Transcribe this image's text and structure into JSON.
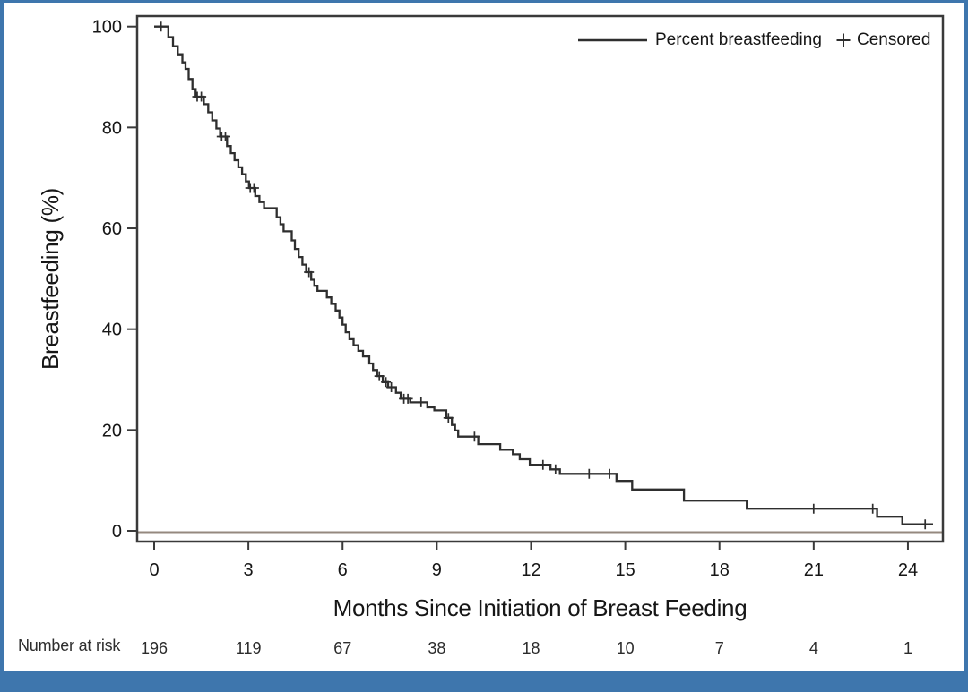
{
  "colors": {
    "accent_blue": "#3e76ad",
    "curve": "#2e2e2e",
    "frame": "#3a3a3a",
    "zero_reference_line": "#95897f",
    "text": "#161616"
  },
  "chart_data": {
    "type": "line",
    "subtype": "kaplan-meier-step-curve",
    "title": "",
    "xlabel": "Months Since Initiation of Breast Feeding",
    "ylabel": "Breastfeeding (%)",
    "x_ticks": [
      0,
      3,
      6,
      9,
      12,
      15,
      18,
      21,
      24
    ],
    "y_ticks": [
      0,
      20,
      40,
      60,
      80,
      100
    ],
    "xlim": [
      -0.55,
      25.1
    ],
    "ylim": [
      -2,
      104
    ],
    "grid": false,
    "zero_reference_line": true,
    "legend": {
      "position": "top-right-inside",
      "entries": [
        {
          "type": "line",
          "label": "Percent breastfeeding"
        },
        {
          "type": "marker",
          "symbol": "+",
          "label": "Censored"
        }
      ]
    },
    "series": [
      {
        "name": "Percent breastfeeding",
        "step": "post",
        "end_time": 24.8,
        "points": [
          [
            0,
            100
          ],
          [
            0.45,
            97.9
          ],
          [
            0.6,
            96.1
          ],
          [
            0.75,
            94.5
          ],
          [
            0.9,
            92.9
          ],
          [
            1.0,
            91.6
          ],
          [
            1.1,
            89.6
          ],
          [
            1.22,
            87.6
          ],
          [
            1.32,
            86.1
          ],
          [
            1.58,
            84.6
          ],
          [
            1.72,
            83.0
          ],
          [
            1.85,
            81.4
          ],
          [
            1.98,
            79.8
          ],
          [
            2.1,
            78.2
          ],
          [
            2.32,
            76.3
          ],
          [
            2.44,
            74.9
          ],
          [
            2.56,
            73.5
          ],
          [
            2.68,
            72.1
          ],
          [
            2.8,
            70.7
          ],
          [
            2.92,
            69.3
          ],
          [
            3.02,
            68.0
          ],
          [
            3.22,
            66.4
          ],
          [
            3.35,
            65.2
          ],
          [
            3.5,
            64.0
          ],
          [
            3.9,
            62.2
          ],
          [
            4.02,
            60.8
          ],
          [
            4.12,
            59.4
          ],
          [
            4.38,
            57.6
          ],
          [
            4.48,
            55.9
          ],
          [
            4.6,
            54.3
          ],
          [
            4.72,
            52.8
          ],
          [
            4.84,
            51.3
          ],
          [
            5.0,
            49.8
          ],
          [
            5.1,
            48.6
          ],
          [
            5.2,
            47.6
          ],
          [
            5.5,
            46.3
          ],
          [
            5.64,
            45.0
          ],
          [
            5.78,
            43.7
          ],
          [
            5.9,
            42.3
          ],
          [
            6.0,
            40.9
          ],
          [
            6.1,
            39.4
          ],
          [
            6.22,
            38.0
          ],
          [
            6.35,
            36.8
          ],
          [
            6.5,
            35.7
          ],
          [
            6.65,
            34.6
          ],
          [
            6.85,
            33.2
          ],
          [
            6.97,
            31.9
          ],
          [
            7.1,
            30.7
          ],
          [
            7.28,
            29.5
          ],
          [
            7.45,
            28.5
          ],
          [
            7.7,
            27.4
          ],
          [
            7.85,
            26.2
          ],
          [
            8.15,
            25.5
          ],
          [
            8.7,
            24.5
          ],
          [
            8.92,
            23.9
          ],
          [
            9.3,
            22.4
          ],
          [
            9.48,
            21.0
          ],
          [
            9.58,
            19.9
          ],
          [
            9.68,
            18.7
          ],
          [
            10.32,
            17.2
          ],
          [
            11.02,
            16.1
          ],
          [
            11.42,
            15.2
          ],
          [
            11.64,
            14.2
          ],
          [
            11.96,
            13.1
          ],
          [
            12.62,
            12.2
          ],
          [
            12.92,
            11.3
          ],
          [
            14.72,
            9.9
          ],
          [
            15.22,
            8.2
          ],
          [
            16.87,
            6.0
          ],
          [
            18.87,
            4.4
          ],
          [
            23.02,
            2.8
          ],
          [
            23.82,
            1.3
          ]
        ]
      }
    ],
    "censored": [
      [
        0.22,
        100
      ],
      [
        1.37,
        86.1
      ],
      [
        1.5,
        86.1
      ],
      [
        2.15,
        78.2
      ],
      [
        2.27,
        78.2
      ],
      [
        3.06,
        68.0
      ],
      [
        3.18,
        68.0
      ],
      [
        4.93,
        51.3
      ],
      [
        7.17,
        30.7
      ],
      [
        7.38,
        29.5
      ],
      [
        7.55,
        28.5
      ],
      [
        7.95,
        26.2
      ],
      [
        8.08,
        26.2
      ],
      [
        8.5,
        25.5
      ],
      [
        9.37,
        22.4
      ],
      [
        10.2,
        18.7
      ],
      [
        12.38,
        13.1
      ],
      [
        12.78,
        12.2
      ],
      [
        13.85,
        11.3
      ],
      [
        14.5,
        11.3
      ],
      [
        21.0,
        4.4
      ],
      [
        22.88,
        4.4
      ],
      [
        24.55,
        1.3
      ]
    ],
    "number_at_risk": {
      "label": "Number at risk",
      "times": [
        0,
        3,
        6,
        9,
        12,
        15,
        18,
        21,
        24
      ],
      "values": [
        196,
        119,
        67,
        38,
        18,
        10,
        7,
        4,
        1
      ]
    }
  }
}
